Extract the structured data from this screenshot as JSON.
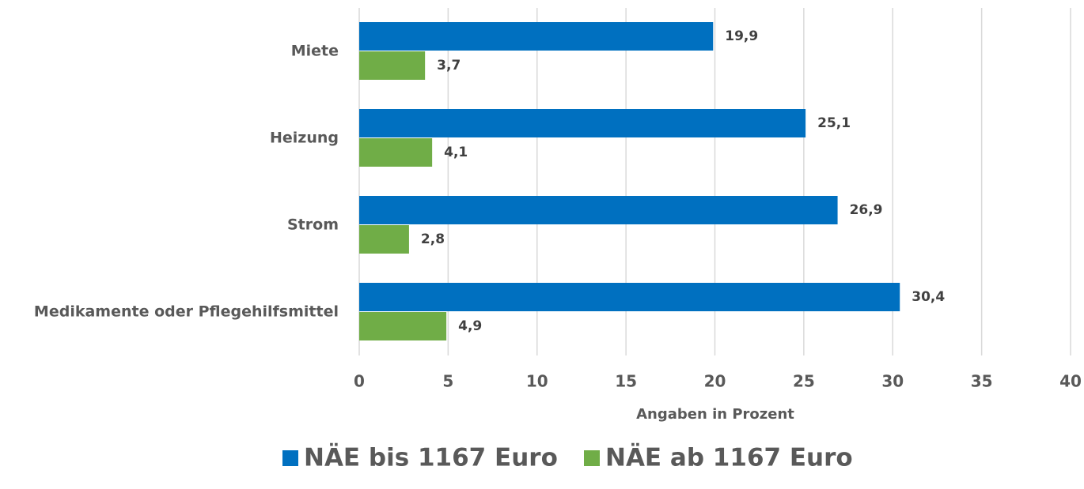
{
  "chart_data": {
    "type": "bar",
    "orientation": "horizontal",
    "categories": [
      "Miete",
      "Heizung",
      "Strom",
      "Medikamente oder Pflegehilfsmittel"
    ],
    "series": [
      {
        "name": "NÄE bis 1167 Euro",
        "color": "#0070c0",
        "values": [
          19.9,
          25.1,
          26.9,
          30.4
        ],
        "value_labels": [
          "19,9",
          "25,1",
          "26,9",
          "30,4"
        ]
      },
      {
        "name": "NÄE ab 1167 Euro",
        "color": "#70ad47",
        "values": [
          3.7,
          4.1,
          2.8,
          4.9
        ],
        "value_labels": [
          "3,7",
          "4,1",
          "2,8",
          "4,9"
        ]
      }
    ],
    "xlabel": "Angaben in Prozent",
    "xlim": [
      0,
      40
    ],
    "xticks": [
      0,
      5,
      10,
      15,
      20,
      25,
      30,
      35,
      40
    ],
    "grid": true,
    "legend": "bottom"
  }
}
